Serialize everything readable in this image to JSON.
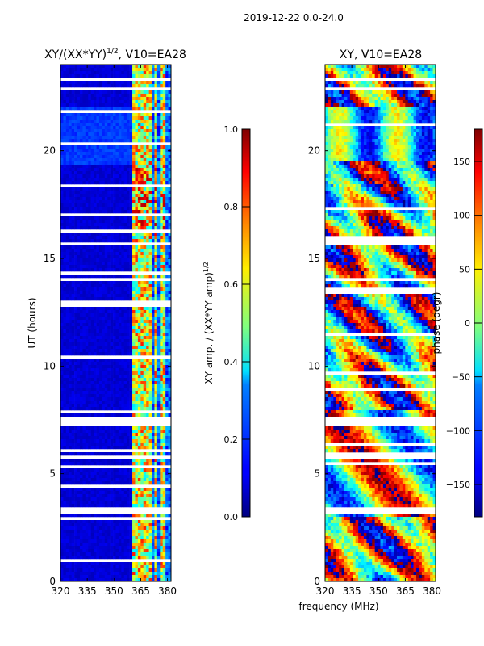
{
  "figure": {
    "suptitle": "2019-12-22 0.0-24.0",
    "shared_xlabel": "frequency (MHz)"
  },
  "chart_data": [
    {
      "type": "heatmap",
      "title_main": "XY/(XX*YY)",
      "title_sup": "1/2",
      "title_tail": ", V10=EA28",
      "xlabel": "",
      "ylabel": "UT (hours)",
      "xlim": [
        320,
        382
      ],
      "ylim": [
        0,
        24
      ],
      "xticks": [
        320,
        335,
        350,
        365,
        380
      ],
      "yticks": [
        0,
        5,
        10,
        15,
        20
      ],
      "colormap": "jet",
      "colorbar": {
        "label_main": "XY amp. / (XX*YY amp)",
        "label_sup": "1/2",
        "range": [
          0.0,
          1.0
        ],
        "ticks": [
          "0.0",
          "0.2",
          "0.4",
          "0.6",
          "0.8",
          "1.0"
        ],
        "tick_values": [
          0.0,
          0.2,
          0.4,
          0.6,
          0.8,
          1.0
        ]
      },
      "band_columns_mhz": [
        361,
        363,
        364,
        366,
        367,
        369,
        371,
        373,
        374,
        376,
        378
      ],
      "flag_gaps_hours": [
        [
          7.2,
          7.7
        ],
        [
          13.9,
          14.1
        ],
        [
          15.6,
          15.8
        ],
        [
          3.2,
          3.4
        ],
        [
          5.7,
          5.8
        ],
        [
          18.4,
          18.5
        ],
        [
          16.3,
          16.4
        ],
        [
          23.2,
          23.4
        ],
        [
          22.8,
          22.9
        ],
        [
          12.7,
          12.8
        ]
      ],
      "notes": "ratio mostly ~0.05-0.15 below 360 MHz; higher (0.3-0.9) in 360-382 MHz band"
    },
    {
      "type": "heatmap",
      "title_main": "XY, V10=EA28",
      "xlabel": "frequency (MHz)",
      "ylabel": "",
      "xlim": [
        320,
        382
      ],
      "ylim": [
        0,
        24
      ],
      "xticks": [
        320,
        335,
        350,
        365,
        380
      ],
      "yticks": [
        0,
        5,
        10,
        15,
        20
      ],
      "colormap": "jet",
      "colorbar": {
        "label_main": "phase (degr)",
        "range": [
          -180,
          180
        ],
        "ticks": [
          "−150",
          "−100",
          "−50",
          "0",
          "50",
          "100",
          "150"
        ],
        "tick_values": [
          -150,
          -100,
          -50,
          0,
          50,
          100,
          150
        ]
      },
      "flag_gaps_hours": [
        [
          7.2,
          7.7
        ],
        [
          13.9,
          14.1
        ],
        [
          15.6,
          15.8
        ],
        [
          3.2,
          3.4
        ],
        [
          5.7,
          5.8
        ],
        [
          18.4,
          18.5
        ],
        [
          16.3,
          16.4
        ],
        [
          23.2,
          23.4
        ],
        [
          22.8,
          22.9
        ],
        [
          12.7,
          12.8
        ]
      ],
      "notes": "phase varies widely across full -180..180 range"
    }
  ]
}
